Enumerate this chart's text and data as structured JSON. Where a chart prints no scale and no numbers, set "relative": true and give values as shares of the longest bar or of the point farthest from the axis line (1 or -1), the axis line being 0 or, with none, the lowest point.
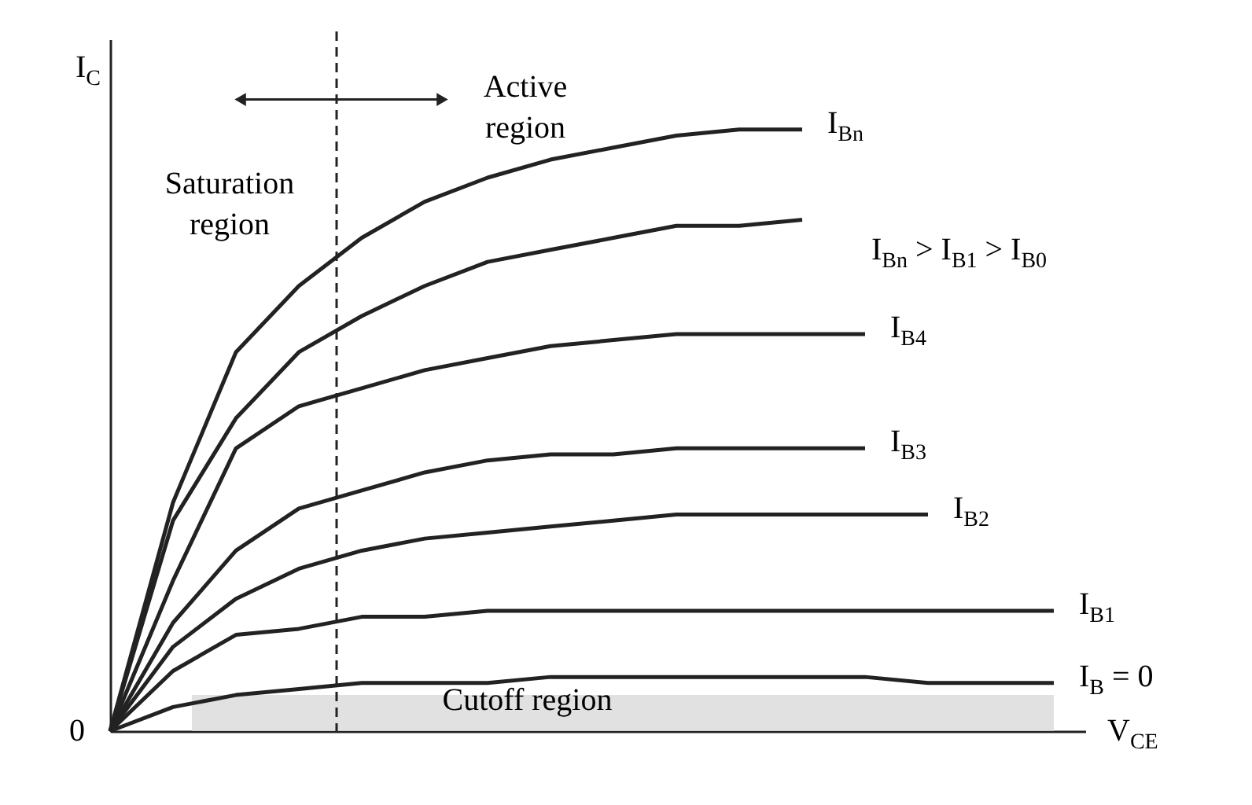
{
  "chart_data": {
    "type": "line",
    "relative": true,
    "xlabel": "V$_{CE}$",
    "ylabel": "I$_{C}$",
    "categories": [
      null,
      null,
      null,
      null,
      null,
      null,
      null,
      null,
      null,
      null,
      null,
      null,
      null,
      null,
      null,
      null
    ],
    "series": [
      {
        "name": "I$_{Bn}$",
        "color": "#222222",
        "values": [
          0,
          0.38,
          0.63,
          0.74,
          0.82,
          0.88,
          0.92,
          0.95,
          0.97,
          0.99,
          1.0,
          1.0,
          null,
          null,
          null,
          null
        ]
      },
      {
        "color": "#222222",
        "values": [
          0,
          0.35,
          0.52,
          0.63,
          0.69,
          0.74,
          0.78,
          0.8,
          0.82,
          0.84,
          0.84,
          0.85,
          null,
          null,
          null,
          null
        ]
      },
      {
        "name": "I$_{B4}$",
        "color": "#222222",
        "values": [
          0,
          0.25,
          0.47,
          0.54,
          0.57,
          0.6,
          0.62,
          0.64,
          0.65,
          0.66,
          0.66,
          0.66,
          0.66,
          null,
          null,
          null
        ]
      },
      {
        "name": "I$_{B3}$",
        "color": "#222222",
        "values": [
          0,
          0.18,
          0.3,
          0.37,
          0.4,
          0.43,
          0.45,
          0.46,
          0.46,
          0.47,
          0.47,
          0.47,
          0.47,
          null,
          null,
          null
        ]
      },
      {
        "name": "I$_{B2}$",
        "color": "#222222",
        "values": [
          0,
          0.14,
          0.22,
          0.27,
          0.3,
          0.32,
          0.33,
          0.34,
          0.35,
          0.36,
          0.36,
          0.36,
          0.36,
          0.36,
          null,
          null
        ]
      },
      {
        "name": "I$_{B1}$",
        "color": "#222222",
        "values": [
          0,
          0.1,
          0.16,
          0.17,
          0.19,
          0.19,
          0.2,
          0.2,
          0.2,
          0.2,
          0.2,
          0.2,
          0.2,
          0.2,
          0.2,
          0.2
        ]
      },
      {
        "name": "I$_{B}$ = 0",
        "color": "#222222",
        "values": [
          0,
          0.04,
          0.06,
          0.07,
          0.08,
          0.08,
          0.08,
          0.09,
          0.09,
          0.09,
          0.09,
          0.09,
          0.09,
          0.08,
          0.08,
          0.08
        ]
      }
    ],
    "bands": [
      {
        "axis": "y",
        "from": 0,
        "to": 0.06,
        "label": "Cutoff region",
        "color": "#d9d9d9"
      }
    ],
    "annotations": [
      "Saturation region",
      "Active region",
      "I$_{Bn}$ > I$_{B1}$ > I$_{B0}$",
      "0"
    ],
    "line_style": "solid",
    "marker": "none"
  }
}
